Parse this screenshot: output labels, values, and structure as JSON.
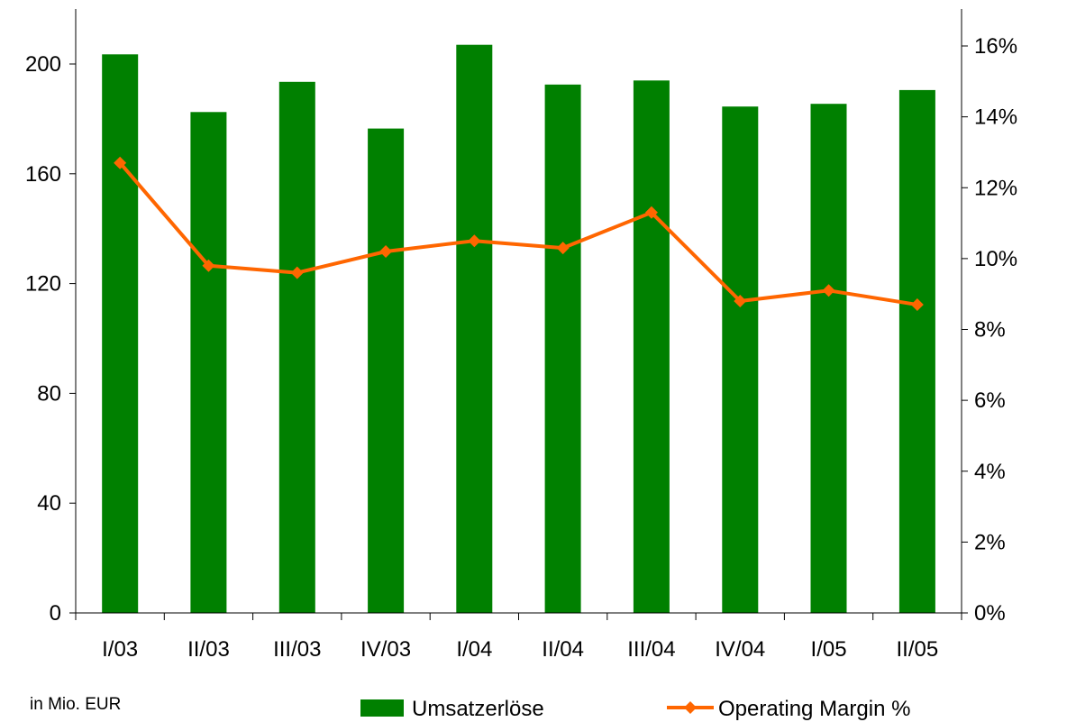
{
  "chart_data": {
    "type": "bar",
    "categories": [
      "I/03",
      "II/03",
      "III/03",
      "IV/03",
      "I/04",
      "II/04",
      "III/04",
      "IV/04",
      "I/05",
      "II/05"
    ],
    "series": [
      {
        "name": "Umsatzerlöse",
        "type": "bar",
        "axis": "left",
        "color": "#008000",
        "values": [
          203.5,
          182.5,
          193.5,
          176.5,
          207,
          192.5,
          194,
          184.5,
          185.5,
          190.5
        ]
      },
      {
        "name": "Operating Margin %",
        "type": "line",
        "axis": "right",
        "color": "#ff6600",
        "values": [
          12.7,
          9.8,
          9.6,
          10.2,
          10.5,
          10.3,
          11.3,
          8.8,
          9.1,
          8.7
        ]
      }
    ],
    "y_left": {
      "ylim": [
        0,
        220
      ],
      "ticks": [
        0,
        40,
        80,
        120,
        160,
        200
      ],
      "tick_labels": [
        "0",
        "40",
        "80",
        "120",
        "160",
        "200"
      ]
    },
    "y_right": {
      "ylim": [
        0,
        17
      ],
      "ticks": [
        0,
        2,
        4,
        6,
        8,
        10,
        12,
        14,
        16
      ],
      "tick_labels": [
        "0%",
        "2%",
        "4%",
        "6%",
        "8%",
        "10%",
        "12%",
        "14%",
        "16%"
      ]
    },
    "unit_note": "in Mio.  EUR",
    "legend": [
      "Umsatzerlöse",
      "Operating Margin %"
    ],
    "legend_position": "bottom",
    "grid": false
  }
}
